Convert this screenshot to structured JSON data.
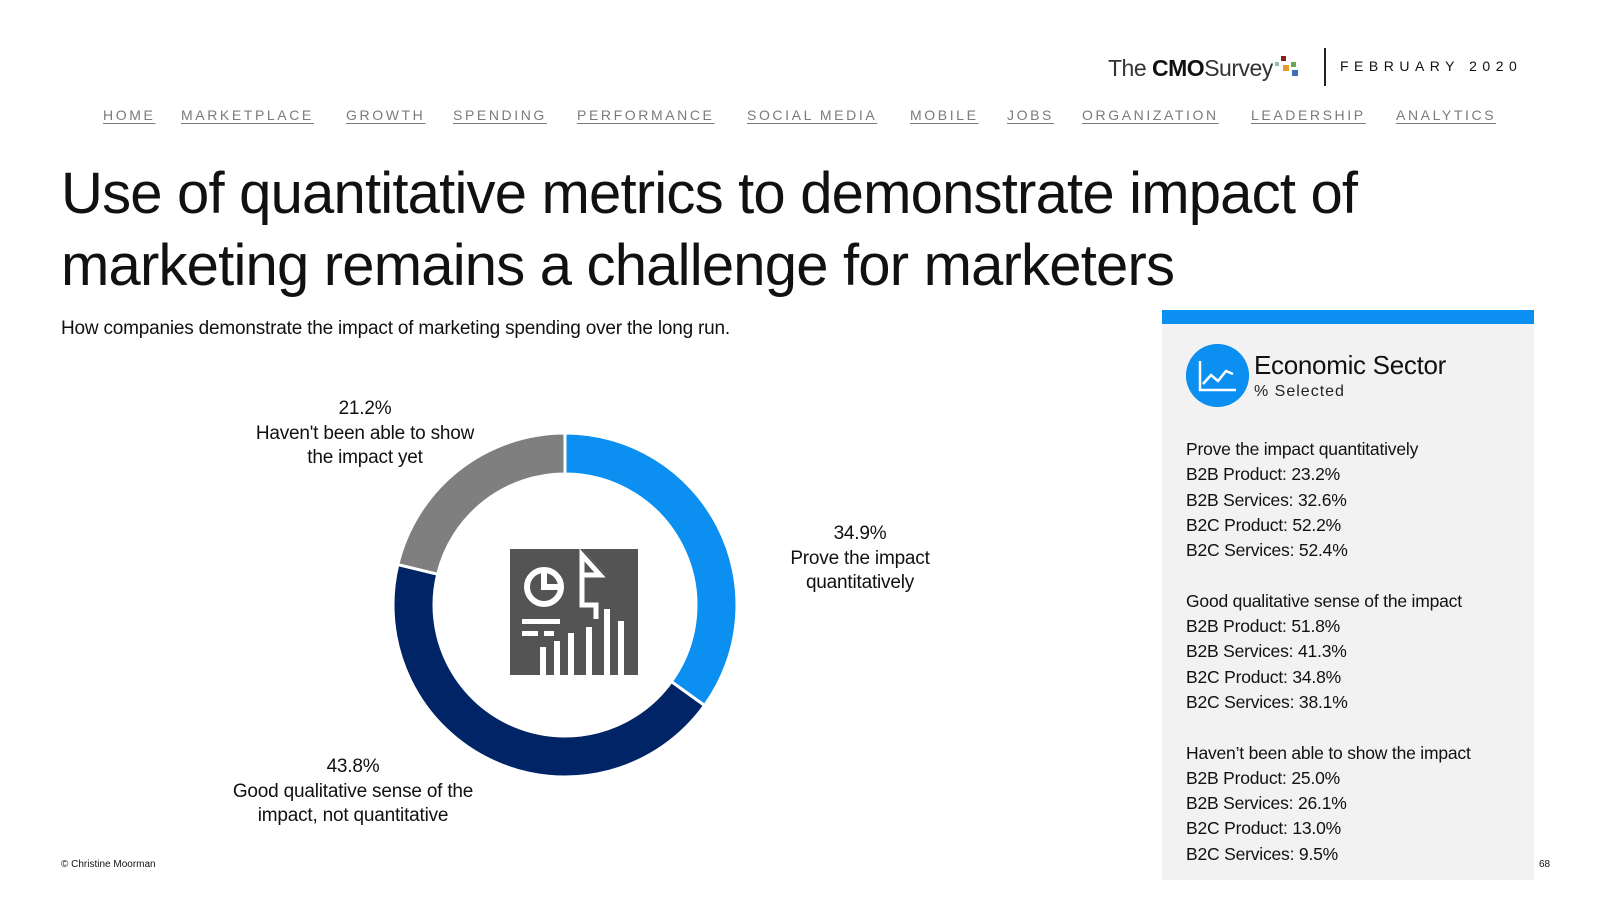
{
  "header": {
    "logo": {
      "text_prefix": "The",
      "text_bold": "CMO",
      "text_suffix": "Survey"
    },
    "date": "FEBRUARY 2020"
  },
  "nav": {
    "items": [
      "HOME",
      "MARKETPLACE",
      "GROWTH",
      "SPENDING",
      "PERFORMANCE",
      "SOCIAL MEDIA",
      "MOBILE",
      "JOBS",
      "ORGANIZATION",
      "LEADERSHIP",
      "ANALYTICS"
    ]
  },
  "main": {
    "title_line1": "Use of quantitative metrics to demonstrate impact of",
    "title_line2": "marketing remains a challenge for marketers",
    "subtitle": "How companies demonstrate the impact of marketing spending over the long run."
  },
  "chart_data": {
    "type": "pie",
    "donut": true,
    "slices": [
      {
        "label_line1": "Prove the impact",
        "label_line2": "quantitatively",
        "value": 34.9,
        "display": "34.9%",
        "color": "#0b8ff0"
      },
      {
        "label_line1": "Good qualitative sense of the",
        "label_line2": "impact, not quantitative",
        "value": 43.8,
        "display": "43.8%",
        "color": "#002466"
      },
      {
        "label_line1": "Haven't been able to show",
        "label_line2": "the impact yet",
        "value": 21.2,
        "display": "21.2%",
        "color": "#7f7f7f"
      }
    ],
    "center_icon": "report-chart-icon"
  },
  "panel": {
    "icon": "line-chart-icon",
    "accent_color": "#0b8ff0",
    "title": "Economic Sector",
    "subtitle": "% Selected",
    "groups": [
      {
        "heading": "Prove the impact quantitatively",
        "rows": [
          "B2B Product: 23.2%",
          "B2B Services: 32.6%",
          "B2C Product: 52.2%",
          "B2C Services: 52.4%"
        ]
      },
      {
        "heading": "Good qualitative sense of the impact",
        "rows": [
          "B2B Product: 51.8%",
          "B2B Services: 41.3%",
          "B2C Product: 34.8%",
          "B2C Services: 38.1%"
        ]
      },
      {
        "heading": "Haven’t been able to show the impact",
        "rows": [
          "B2B Product: 25.0%",
          "B2B Services: 26.1%",
          "B2C Product: 13.0%",
          "B2C Services: 9.5%"
        ]
      }
    ]
  },
  "footer": {
    "copyright": "© Christine Moorman",
    "page_number": "68"
  }
}
